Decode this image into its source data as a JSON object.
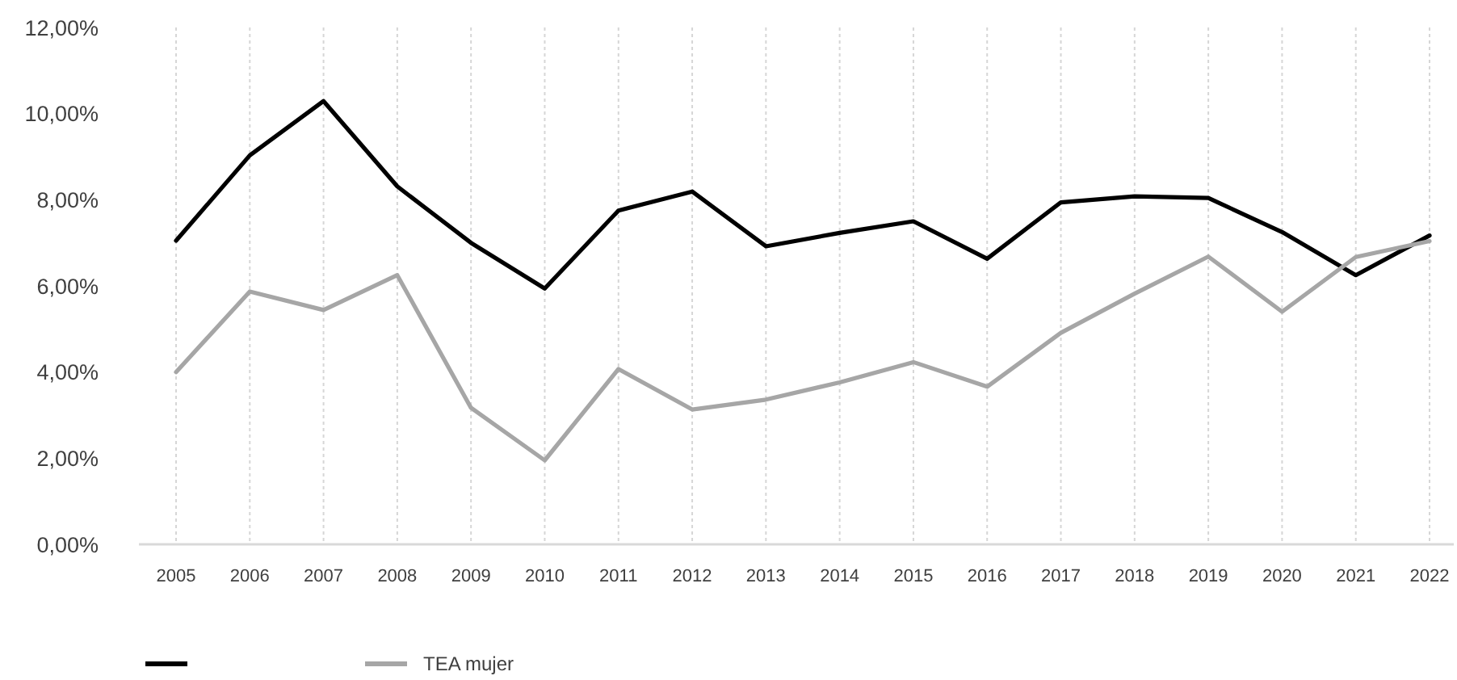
{
  "chart_data": {
    "type": "line",
    "categories": [
      "2005",
      "2006",
      "2007",
      "2008",
      "2009",
      "2010",
      "2011",
      "2012",
      "2013",
      "2014",
      "2015",
      "2016",
      "2017",
      "2018",
      "2019",
      "2020",
      "2021",
      "2022"
    ],
    "series": [
      {
        "color": "#000000",
        "values": [
          7.05,
          9.03,
          10.29,
          8.31,
          7.0,
          5.94,
          7.75,
          8.19,
          6.92,
          7.23,
          7.5,
          6.63,
          7.94,
          8.08,
          8.04,
          7.25,
          6.25,
          7.17
        ]
      },
      {
        "name": "TEA mujer",
        "color": "#a6a6a6",
        "values": [
          4.0,
          5.87,
          5.44,
          6.25,
          3.17,
          1.95,
          4.07,
          3.13,
          3.36,
          3.76,
          4.23,
          3.66,
          4.91,
          5.82,
          6.68,
          5.4,
          6.67,
          7.04
        ]
      }
    ],
    "ylim": [
      0,
      12
    ],
    "yticks": [
      {
        "value": 0,
        "label": "0,00%"
      },
      {
        "value": 2,
        "label": "2,00%"
      },
      {
        "value": 4,
        "label": "4,00%"
      },
      {
        "value": 6,
        "label": "6,00%"
      },
      {
        "value": 8,
        "label": "8,00%"
      },
      {
        "value": 10,
        "label": "10,00%"
      },
      {
        "value": 12,
        "label": "12,00%"
      }
    ],
    "grid": "x",
    "legend": "bottom left",
    "marker": "none"
  }
}
